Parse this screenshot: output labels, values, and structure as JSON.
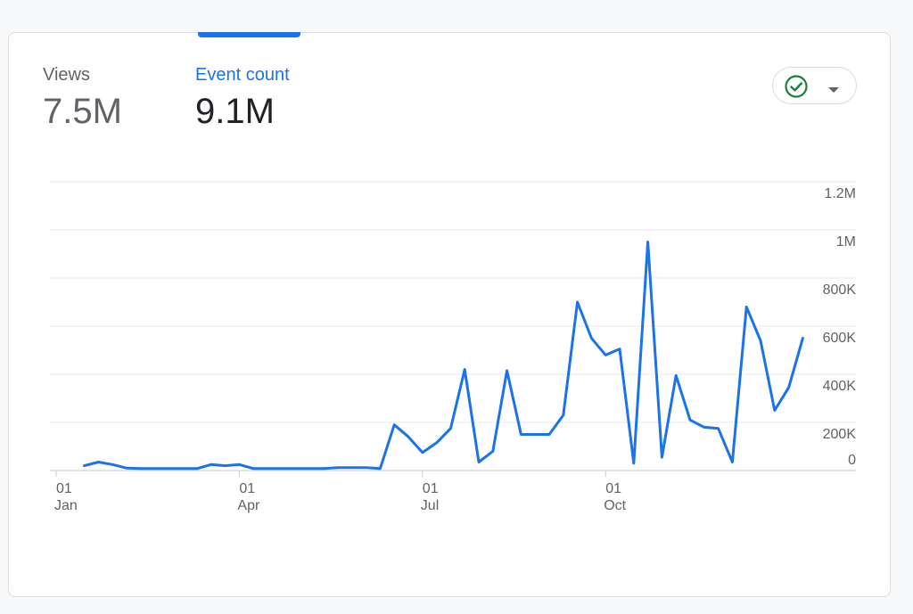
{
  "metrics": [
    {
      "label": "Views",
      "value": "7.5M",
      "active": false
    },
    {
      "label": "Event count",
      "value": "9.1M",
      "active": true
    }
  ],
  "compare_button": {
    "icon": "check-circle-icon",
    "caret_icon": "caret-down-icon",
    "check_color": "#188038"
  },
  "colors": {
    "accent": "#1a73e8",
    "line": "#1a73e8",
    "grid": "#e8eaed",
    "text_muted": "#5f6368"
  },
  "chart_data": {
    "type": "line",
    "title": "",
    "xlabel": "",
    "ylabel": "",
    "ylim": [
      0,
      1200000
    ],
    "y_ticks": [
      {
        "value": 0,
        "label": "0"
      },
      {
        "value": 200000,
        "label": "200K"
      },
      {
        "value": 400000,
        "label": "400K"
      },
      {
        "value": 600000,
        "label": "600K"
      },
      {
        "value": 800000,
        "label": "800K"
      },
      {
        "value": 1000000,
        "label": "1M"
      },
      {
        "value": 1200000,
        "label": "1.2M"
      }
    ],
    "x_ticks": [
      {
        "week": 0,
        "day": "01",
        "month": "Jan"
      },
      {
        "week": 13,
        "day": "01",
        "month": "Apr"
      },
      {
        "week": 26,
        "day": "01",
        "month": "Jul"
      },
      {
        "week": 39,
        "day": "01",
        "month": "Oct"
      }
    ],
    "grid": true,
    "legend": "none",
    "series": [
      {
        "x": [
          2,
          3,
          4,
          5,
          6,
          7,
          8,
          9,
          10,
          11,
          12,
          13,
          14,
          15,
          16,
          17,
          18,
          19,
          20,
          21,
          22,
          23,
          24,
          25,
          26,
          27,
          28,
          29,
          30,
          31,
          32,
          33,
          34,
          35,
          36,
          37,
          38,
          39,
          40,
          41,
          42,
          43,
          44,
          45,
          46,
          47,
          48,
          49,
          50,
          51,
          52,
          53
        ],
        "values": [
          20000,
          35000,
          25000,
          10000,
          8000,
          8000,
          8000,
          8000,
          8000,
          25000,
          20000,
          25000,
          8000,
          8000,
          8000,
          8000,
          8000,
          8000,
          12000,
          12000,
          12000,
          8000,
          190000,
          140000,
          75000,
          115000,
          175000,
          420000,
          35000,
          80000,
          415000,
          150000,
          150000,
          150000,
          230000,
          700000,
          550000,
          480000,
          505000,
          30000,
          950000,
          55000,
          395000,
          210000,
          180000,
          175000,
          35000,
          680000,
          540000,
          250000,
          345000,
          550000
        ]
      }
    ]
  }
}
